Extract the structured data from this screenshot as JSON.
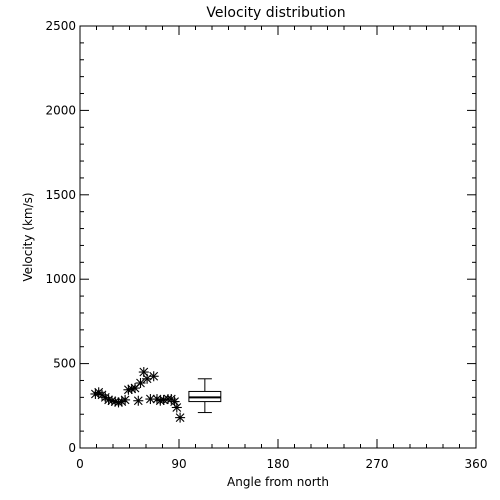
{
  "chart_data": {
    "type": "scatter",
    "title": "Velocity distribution",
    "xlabel": "Angle from north",
    "ylabel": "Velocity (km/s)",
    "xlim": [
      0,
      360
    ],
    "ylim": [
      0,
      2500
    ],
    "x_ticks": [
      0,
      90,
      180,
      270,
      360
    ],
    "y_ticks": [
      0,
      500,
      1000,
      1500,
      2000,
      2500
    ],
    "grid": false,
    "marker": "asterisk",
    "points": [
      {
        "x": 14,
        "y": 320
      },
      {
        "x": 17,
        "y": 330
      },
      {
        "x": 20,
        "y": 315
      },
      {
        "x": 23,
        "y": 300
      },
      {
        "x": 26,
        "y": 285
      },
      {
        "x": 29,
        "y": 280
      },
      {
        "x": 32,
        "y": 275
      },
      {
        "x": 35,
        "y": 270
      },
      {
        "x": 38,
        "y": 275
      },
      {
        "x": 41,
        "y": 285
      },
      {
        "x": 44,
        "y": 345
      },
      {
        "x": 47,
        "y": 350
      },
      {
        "x": 50,
        "y": 355
      },
      {
        "x": 53,
        "y": 280
      },
      {
        "x": 55,
        "y": 385
      },
      {
        "x": 58,
        "y": 450
      },
      {
        "x": 61,
        "y": 410
      },
      {
        "x": 64,
        "y": 290
      },
      {
        "x": 67,
        "y": 425
      },
      {
        "x": 70,
        "y": 290
      },
      {
        "x": 73,
        "y": 280
      },
      {
        "x": 76,
        "y": 285
      },
      {
        "x": 80,
        "y": 290
      },
      {
        "x": 83,
        "y": 290
      },
      {
        "x": 86,
        "y": 275
      },
      {
        "x": 88,
        "y": 240
      },
      {
        "x": 91,
        "y": 180
      }
    ],
    "boxplot": {
      "x_left": 99,
      "x_right": 128,
      "min": 210,
      "q1": 275,
      "median": 300,
      "q3": 335,
      "max": 410
    }
  }
}
